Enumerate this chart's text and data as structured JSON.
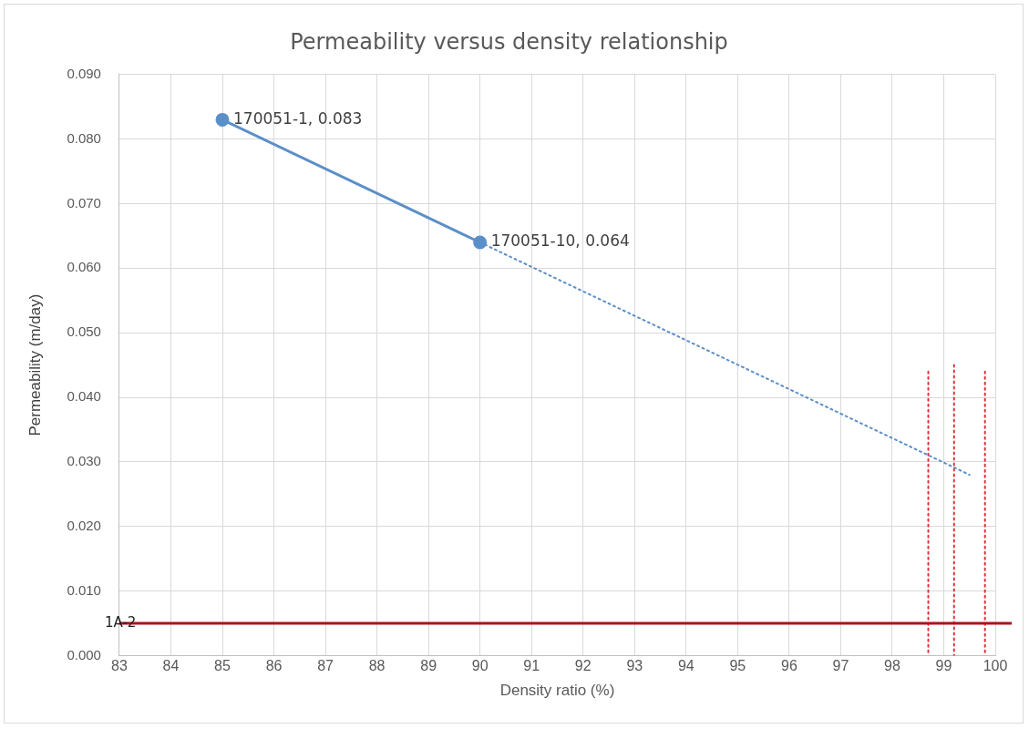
{
  "chart_data": {
    "type": "line",
    "title": "Permeability versus density relationship",
    "xlabel": "Density ratio (%)",
    "ylabel": "Permeability (m/day)",
    "xlim": [
      83,
      100
    ],
    "xticks": [
      83,
      84,
      85,
      86,
      87,
      88,
      89,
      90,
      91,
      92,
      93,
      94,
      95,
      96,
      97,
      98,
      99,
      100
    ],
    "ylim": [
      0,
      0.09
    ],
    "yticks": [
      {
        "value": 0,
        "label": "0.000"
      },
      {
        "value": 0.01,
        "label": "0.010"
      },
      {
        "value": 0.02,
        "label": "0.020"
      },
      {
        "value": 0.03,
        "label": "0.030"
      },
      {
        "value": 0.04,
        "label": "0.040"
      },
      {
        "value": 0.05,
        "label": "0.050"
      },
      {
        "value": 0.06,
        "label": "0.060"
      },
      {
        "value": 0.07,
        "label": "0.070"
      },
      {
        "value": 0.08,
        "label": "0.080"
      },
      {
        "value": 0.09,
        "label": "0.090"
      }
    ],
    "grid": true,
    "legend": false,
    "series": [
      {
        "color": "#5b8fc7",
        "x": [
          85,
          90
        ],
        "values": [
          0.083,
          0.064
        ],
        "marker": "circle",
        "line_style": "solid",
        "value_labels": [
          "170051-1, 0.083",
          "170051-10, 0.064"
        ]
      },
      {
        "color": "#5b8fc7",
        "x": [
          90,
          99.5
        ],
        "values": [
          0.064,
          0.028
        ],
        "marker": "none",
        "line_style": "dotted"
      },
      {
        "color": "#e0303a",
        "x": [
          98.7,
          98.7
        ],
        "values": [
          0.044,
          0
        ],
        "marker": "none",
        "line_style": "dotted"
      },
      {
        "color": "#e0303a",
        "x": [
          99.2,
          99.2
        ],
        "values": [
          0.045,
          0
        ],
        "marker": "none",
        "line_style": "dotted"
      },
      {
        "color": "#e0303a",
        "x": [
          99.8,
          99.8
        ],
        "values": [
          0.044,
          0
        ],
        "marker": "none",
        "line_style": "dotted"
      }
    ],
    "ref_lines": [
      {
        "axis": "y",
        "value": 0.005,
        "label": "1A-2",
        "color": "#b0101c",
        "line_style": "solid"
      }
    ]
  }
}
